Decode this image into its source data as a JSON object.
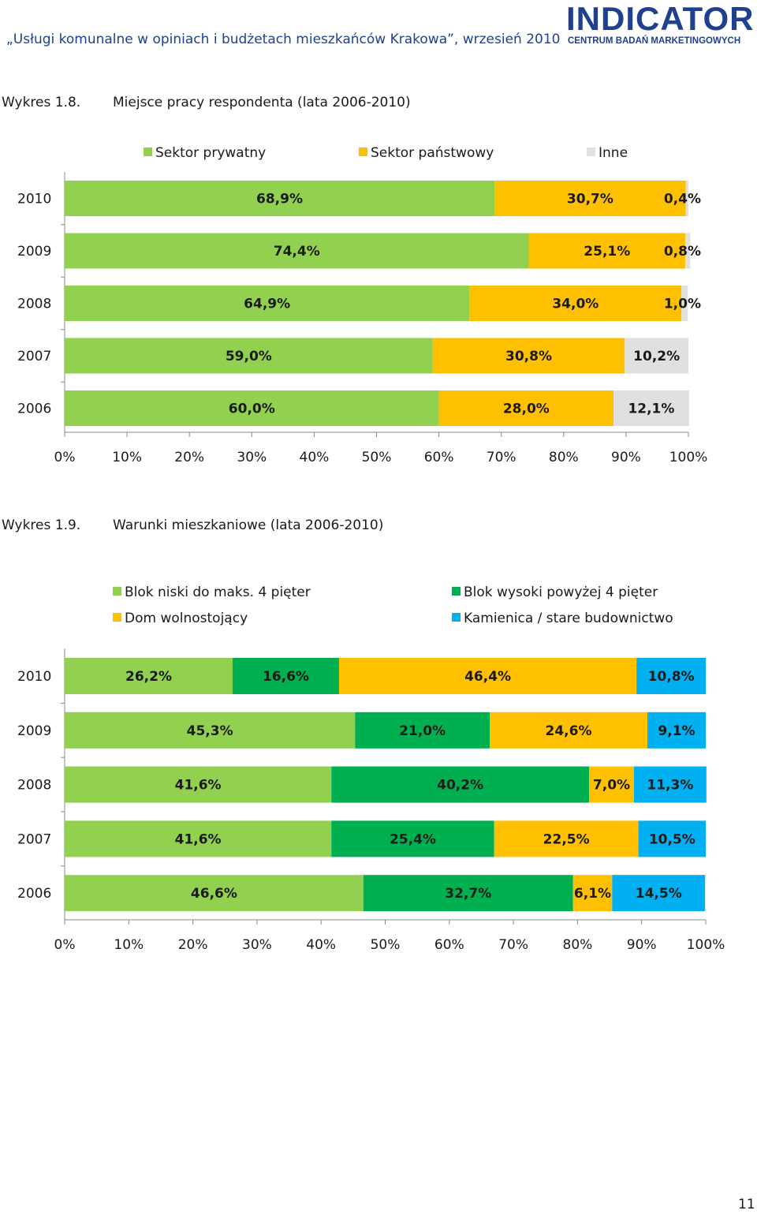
{
  "header": {
    "title": "„Usługi komunalne w opiniach i budżetach mieszkańców Krakowa”, wrzesień 2010"
  },
  "logo": {
    "name": "INDICATOR",
    "subtitle": "CENTRUM BADAŃ MARKETINGOWYCH"
  },
  "page_number": "11",
  "figures": [
    {
      "number": "Wykres 1.8.",
      "title": "Miejsce pracy respondenta (lata 2006-2010)"
    },
    {
      "number": "Wykres 1.9.",
      "title": "Warunki mieszkaniowe (lata 2006-2010)"
    }
  ],
  "chart_data": [
    {
      "type": "bar",
      "orientation": "horizontal",
      "stacked": true,
      "title": "Miejsce pracy respondenta (lata 2006-2010)",
      "categories": [
        "2010",
        "2009",
        "2008",
        "2007",
        "2006"
      ],
      "series": [
        {
          "name": "Sektor prywatny",
          "color": "#92d050",
          "values": [
            68.9,
            74.4,
            64.9,
            59.0,
            60.0
          ],
          "labels": [
            "68,9%",
            "74,4%",
            "64,9%",
            "59,0%",
            "60,0%"
          ]
        },
        {
          "name": "Sektor państwowy",
          "color": "#ffc000",
          "values": [
            30.7,
            25.1,
            34.0,
            30.8,
            28.0
          ],
          "labels": [
            "30,7%",
            "25,1%",
            "34,0%",
            "30,8%",
            "28,0%"
          ]
        },
        {
          "name": "Inne",
          "color": "#e0e0e0",
          "values": [
            0.4,
            0.8,
            1.0,
            10.2,
            12.1
          ],
          "labels": [
            "0,4%",
            "0,8%",
            "1,0%",
            "10,2%",
            "12,1%"
          ]
        }
      ],
      "xticks": [
        "0%",
        "10%",
        "20%",
        "30%",
        "40%",
        "50%",
        "60%",
        "70%",
        "80%",
        "90%",
        "100%"
      ],
      "xlim": [
        0,
        100
      ],
      "legend": "top"
    },
    {
      "type": "bar",
      "orientation": "horizontal",
      "stacked": true,
      "title": "Warunki mieszkaniowe (lata 2006-2010)",
      "categories": [
        "2010",
        "2009",
        "2008",
        "2007",
        "2006"
      ],
      "series": [
        {
          "name": "Blok niski do maks. 4 pięter",
          "color": "#92d050",
          "values": [
            26.2,
            45.3,
            41.6,
            41.6,
            46.6
          ],
          "labels": [
            "26,2%",
            "45,3%",
            "41,6%",
            "41,6%",
            "46,6%"
          ]
        },
        {
          "name": "Blok wysoki powyżej 4 pięter",
          "color": "#00b050",
          "values": [
            16.6,
            21.0,
            40.2,
            25.4,
            32.7
          ],
          "labels": [
            "16,6%",
            "21,0%",
            "40,2%",
            "25,4%",
            "32,7%"
          ]
        },
        {
          "name": "Dom wolnostojący",
          "color": "#ffc000",
          "values": [
            46.4,
            24.6,
            7.0,
            22.5,
            6.1
          ],
          "labels": [
            "46,4%",
            "24,6%",
            "7,0%",
            "22,5%",
            "6,1%"
          ]
        },
        {
          "name": "Kamienica / stare budownictwo",
          "color": "#00b0f0",
          "values": [
            10.8,
            9.1,
            11.3,
            10.5,
            14.5
          ],
          "labels": [
            "10,8%",
            "9,1%",
            "11,3%",
            "10,5%",
            "14,5%"
          ]
        }
      ],
      "xticks": [
        "0%",
        "10%",
        "20%",
        "30%",
        "40%",
        "50%",
        "60%",
        "70%",
        "80%",
        "90%",
        "100%"
      ],
      "xlim": [
        0,
        100
      ],
      "legend": "top"
    }
  ]
}
